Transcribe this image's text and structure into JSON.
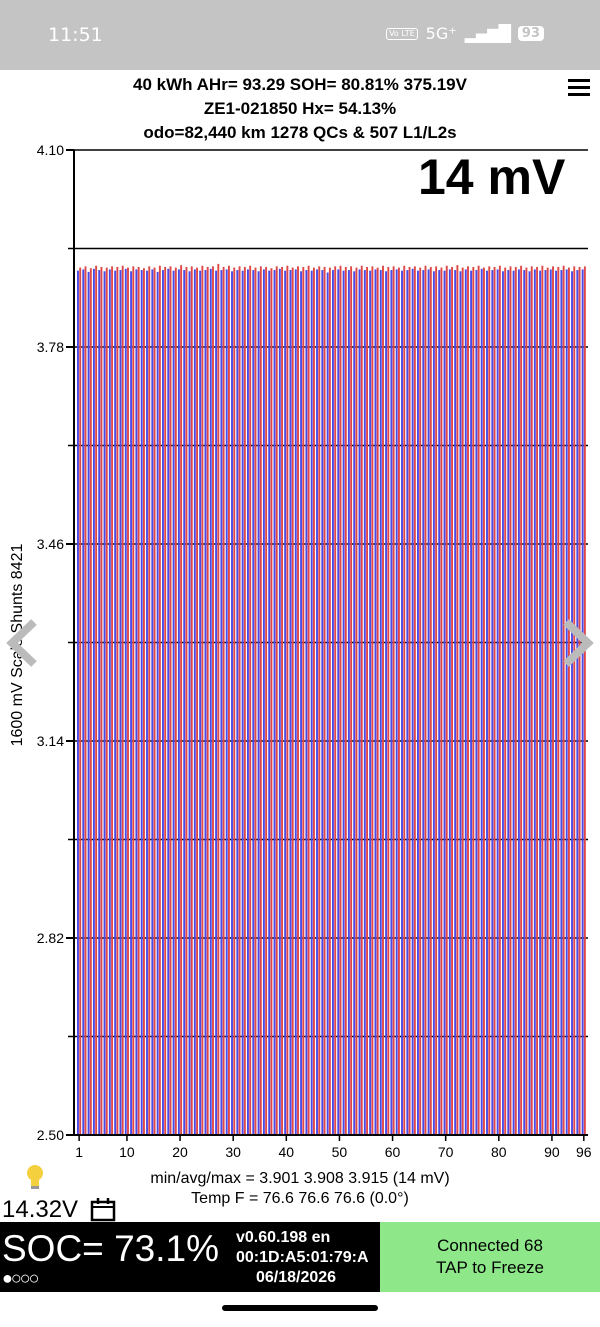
{
  "status_bar": {
    "time": "11:51",
    "volte": "Vo LTE",
    "network": "5G⁺",
    "battery": "93"
  },
  "header": {
    "line1": "40 kWh  AHr= 93.29  SOH= 80.81%   375.19V",
    "line2": "ZE1-021850   Hx= 54.13%",
    "line3": "odo=82,440 km 1278 QCs & 507 L1/L2s"
  },
  "delta_mv": "14 mV",
  "chart_data": {
    "type": "bar",
    "ylabel": "1600 mV Scale  Shunts 8421",
    "ylim": [
      2.5,
      4.1
    ],
    "y_tick_labels": [
      "4.10",
      "3.78",
      "3.46",
      "3.14",
      "2.82",
      "2.50"
    ],
    "x_tick_labels": [
      "1",
      "10",
      "20",
      "30",
      "40",
      "50",
      "60",
      "70",
      "80",
      "90",
      "96"
    ],
    "cell_count": 96,
    "series": [
      {
        "color": "#4a4ae8",
        "values": [
          3.904,
          3.906,
          3.902,
          3.907,
          3.905,
          3.903,
          3.906,
          3.904,
          3.905,
          3.907,
          3.903,
          3.906,
          3.905,
          3.904,
          3.906,
          3.902,
          3.905,
          3.907,
          3.904,
          3.906,
          3.905,
          3.903,
          3.906,
          3.904,
          3.905,
          3.907,
          3.904,
          3.905,
          3.906,
          3.903,
          3.905,
          3.904,
          3.906,
          3.905,
          3.903,
          3.906,
          3.904,
          3.905,
          3.907,
          3.904,
          3.905,
          3.906,
          3.903,
          3.905,
          3.904,
          3.906,
          3.905,
          3.901,
          3.905,
          3.906,
          3.904,
          3.905,
          3.903,
          3.906,
          3.905,
          3.904,
          3.906,
          3.905,
          3.903,
          3.905,
          3.906,
          3.904,
          3.905,
          3.907,
          3.904,
          3.905,
          3.906,
          3.903,
          3.905,
          3.904,
          3.906,
          3.905,
          3.903,
          3.906,
          3.904,
          3.905,
          3.907,
          3.904,
          3.905,
          3.906,
          3.903,
          3.905,
          3.904,
          3.906,
          3.905,
          3.903,
          3.906,
          3.904,
          3.905,
          3.906,
          3.904,
          3.905,
          3.906,
          3.903,
          3.905,
          3.906
        ]
      },
      {
        "color": "#e04848",
        "values": [
          3.909,
          3.911,
          3.908,
          3.912,
          3.91,
          3.909,
          3.911,
          3.91,
          3.912,
          3.909,
          3.911,
          3.91,
          3.908,
          3.911,
          3.909,
          3.912,
          3.91,
          3.911,
          3.909,
          3.913,
          3.91,
          3.911,
          3.909,
          3.912,
          3.91,
          3.911,
          3.915,
          3.91,
          3.912,
          3.909,
          3.911,
          3.91,
          3.912,
          3.909,
          3.911,
          3.91,
          3.908,
          3.911,
          3.91,
          3.912,
          3.909,
          3.911,
          3.91,
          3.912,
          3.909,
          3.911,
          3.91,
          3.909,
          3.911,
          3.912,
          3.91,
          3.911,
          3.909,
          3.912,
          3.91,
          3.911,
          3.909,
          3.912,
          3.91,
          3.911,
          3.909,
          3.912,
          3.91,
          3.911,
          3.909,
          3.912,
          3.91,
          3.911,
          3.909,
          3.912,
          3.91,
          3.913,
          3.909,
          3.911,
          3.91,
          3.912,
          3.909,
          3.911,
          3.91,
          3.912,
          3.909,
          3.911,
          3.91,
          3.912,
          3.909,
          3.911,
          3.91,
          3.912,
          3.909,
          3.911,
          3.91,
          3.912,
          3.909,
          3.911,
          3.91,
          3.911
        ]
      }
    ],
    "grid": true
  },
  "stats": {
    "minavgmax": "min/avg/max = 3.901  3.908  3.915  (14 mV)",
    "temp": "Temp F = 76.6  76.6  76.6  (0.0°)"
  },
  "aux_voltage": "14.32V",
  "soc": "SOC= 73.1%",
  "dots": "●○○○",
  "version": {
    "line1": "v0.60.198 en",
    "line2": "00:1D:A5:01:79:A",
    "date": "06/18/2026"
  },
  "connect": {
    "line1": "Connected 68",
    "line2": "TAP to Freeze"
  },
  "colors": {
    "blue_bar": "#4a4ae8",
    "red_bar": "#e04848",
    "connect_bg": "#8ee88a"
  }
}
